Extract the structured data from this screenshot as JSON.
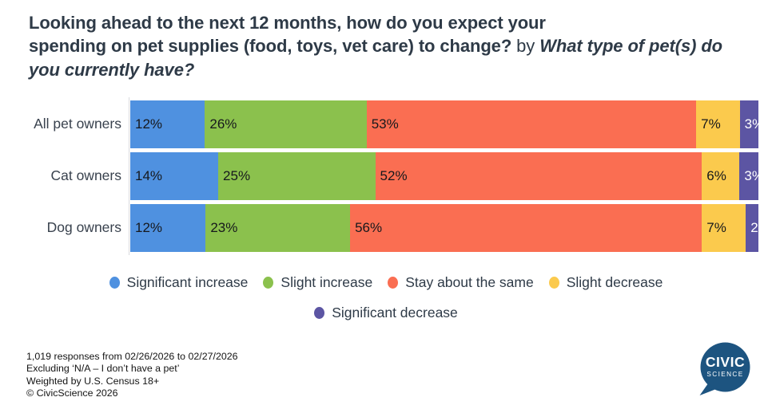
{
  "title": {
    "question_line1": "Looking ahead to the next 12 months, how do you expect your",
    "question_line2": "spending on pet supplies (food, toys, vet care) to change?",
    "connector": " by ",
    "crosstab": "What type of pet(s) do you currently have?"
  },
  "chart_data": {
    "type": "bar",
    "orientation": "horizontal",
    "stacked": true,
    "categories": [
      "All pet owners",
      "Cat owners",
      "Dog owners"
    ],
    "series": [
      {
        "name": "Significant increase",
        "color": "#4f91e0",
        "values": [
          12,
          14,
          12
        ],
        "dark_label": false
      },
      {
        "name": "Slight increase",
        "color": "#8bc14d",
        "values": [
          26,
          25,
          23
        ],
        "dark_label": false
      },
      {
        "name": "Stay about the same",
        "color": "#fa6e52",
        "values": [
          53,
          52,
          56
        ],
        "dark_label": false
      },
      {
        "name": "Slight decrease",
        "color": "#fbca4d",
        "values": [
          7,
          6,
          7
        ],
        "dark_label": false
      },
      {
        "name": "Significant decrease",
        "color": "#5c55a3",
        "values": [
          3,
          3,
          2
        ],
        "dark_label": true
      }
    ],
    "value_suffix": "%",
    "legend_position": "bottom",
    "legend_rows": [
      4,
      1
    ],
    "label_color_default": "#16181c",
    "label_color_on_dark": "#ffffff",
    "axis_line_color": "#d9dade"
  },
  "footnotes": [
    "1,019 responses from 02/26/2026 to 02/27/2026",
    "Excluding ‘N/A – I don’t have a pet’",
    "Weighted by U.S. Census 18+",
    "© CivicScience 2026"
  ],
  "logo": {
    "line1": "CIVIC",
    "line2": "SCIENCE",
    "color": "#1d5480"
  }
}
